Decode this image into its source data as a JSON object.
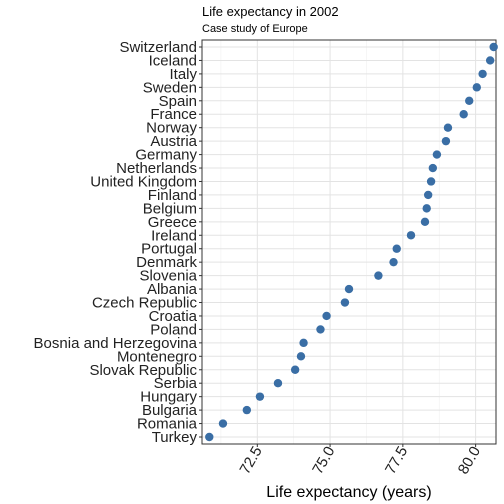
{
  "chart_data": {
    "type": "scatter",
    "title": "Life expectancy in 2002",
    "subtitle": "Case study of Europe",
    "xlabel": "Life expectancy (years)",
    "ylabel": "",
    "xlim": [
      70.6,
      80.7
    ],
    "xticks": [
      72.5,
      75.0,
      77.5,
      80.0
    ],
    "xtick_labels": [
      "72.5",
      "75.0",
      "77.5",
      "80.0"
    ],
    "grid": true,
    "point_color": "#3a6ea5",
    "points": [
      {
        "country": "Switzerland",
        "value": 80.62
      },
      {
        "country": "Iceland",
        "value": 80.5
      },
      {
        "country": "Italy",
        "value": 80.24
      },
      {
        "country": "Sweden",
        "value": 80.04
      },
      {
        "country": "Spain",
        "value": 79.78
      },
      {
        "country": "France",
        "value": 79.59
      },
      {
        "country": "Norway",
        "value": 79.05
      },
      {
        "country": "Austria",
        "value": 78.98
      },
      {
        "country": "Germany",
        "value": 78.67
      },
      {
        "country": "Netherlands",
        "value": 78.53
      },
      {
        "country": "United Kingdom",
        "value": 78.47
      },
      {
        "country": "Finland",
        "value": 78.37
      },
      {
        "country": "Belgium",
        "value": 78.32
      },
      {
        "country": "Greece",
        "value": 78.26
      },
      {
        "country": "Ireland",
        "value": 77.78
      },
      {
        "country": "Portugal",
        "value": 77.29
      },
      {
        "country": "Denmark",
        "value": 77.18
      },
      {
        "country": "Slovenia",
        "value": 76.66
      },
      {
        "country": "Albania",
        "value": 75.65
      },
      {
        "country": "Czech Republic",
        "value": 75.51
      },
      {
        "country": "Croatia",
        "value": 74.88
      },
      {
        "country": "Poland",
        "value": 74.67
      },
      {
        "country": "Bosnia and Herzegovina",
        "value": 74.09
      },
      {
        "country": "Montenegro",
        "value": 74.0
      },
      {
        "country": "Slovak Republic",
        "value": 73.8
      },
      {
        "country": "Serbia",
        "value": 73.21
      },
      {
        "country": "Hungary",
        "value": 72.59
      },
      {
        "country": "Bulgaria",
        "value": 72.14
      },
      {
        "country": "Romania",
        "value": 71.32
      },
      {
        "country": "Turkey",
        "value": 70.85
      }
    ]
  }
}
